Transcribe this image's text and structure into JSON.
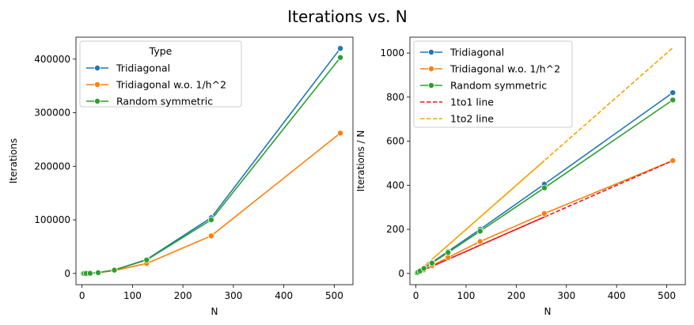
{
  "figure": {
    "suptitle": "Iterations vs. N"
  },
  "chart_data": [
    {
      "type": "line",
      "xlabel": "N",
      "ylabel": "Iterations",
      "xlim": [
        -12,
        537
      ],
      "ylim": [
        -21000,
        441000
      ],
      "xticks": [
        0,
        100,
        200,
        300,
        400,
        500
      ],
      "yticks": [
        0,
        100000,
        200000,
        300000,
        400000
      ],
      "legend": {
        "title": "Type",
        "placement": "upper-left"
      },
      "series": [
        {
          "name": "Tridiagonal",
          "color": "#1f77b4",
          "dashed": false,
          "markers": true,
          "x": [
            2,
            4,
            8,
            16,
            32,
            64,
            128,
            256,
            512
          ],
          "y": [
            6,
            24,
            80,
            330,
            1500,
            6400,
            26000,
            104000,
            420000
          ]
        },
        {
          "name": "Tridiagonal w.o. 1/h^2",
          "color": "#ff7f0e",
          "dashed": false,
          "markers": true,
          "x": [
            2,
            4,
            8,
            16,
            32,
            64,
            128,
            256,
            512
          ],
          "y": [
            3,
            10,
            40,
            250,
            1200,
            5200,
            18500,
            70000,
            262000
          ]
        },
        {
          "name": "Random symmetric",
          "color": "#2ca02c",
          "dashed": false,
          "markers": true,
          "x": [
            2,
            4,
            8,
            16,
            32,
            64,
            128,
            256,
            512
          ],
          "y": [
            5,
            22,
            75,
            320,
            1450,
            6200,
            25000,
            100000,
            403000
          ]
        }
      ]
    },
    {
      "type": "line",
      "xlabel": "N",
      "ylabel": "Iterations / N",
      "xlim": [
        -12,
        537
      ],
      "ylim": [
        -51,
        1072
      ],
      "xticks": [
        0,
        100,
        200,
        300,
        400,
        500
      ],
      "yticks": [
        0,
        200,
        400,
        600,
        800,
        1000
      ],
      "legend": {
        "title": "",
        "placement": "upper-left"
      },
      "series": [
        {
          "name": "Tridiagonal",
          "color": "#1f77b4",
          "dashed": false,
          "markers": true,
          "x": [
            2,
            4,
            8,
            16,
            32,
            64,
            128,
            256,
            512
          ],
          "y": [
            3,
            6,
            12,
            24,
            50,
            100,
            200,
            405,
            820
          ]
        },
        {
          "name": "Tridiagonal w.o. 1/h^2",
          "color": "#ff7f0e",
          "dashed": false,
          "markers": true,
          "x": [
            2,
            4,
            8,
            16,
            32,
            64,
            128,
            256,
            512
          ],
          "y": [
            2,
            4,
            8,
            16,
            36,
            72,
            145,
            272,
            512
          ]
        },
        {
          "name": "Random symmetric",
          "color": "#2ca02c",
          "dashed": false,
          "markers": true,
          "x": [
            2,
            4,
            8,
            16,
            32,
            64,
            128,
            256,
            512
          ],
          "y": [
            2.5,
            5.5,
            11,
            23,
            47,
            95,
            192,
            388,
            787
          ]
        },
        {
          "name": "1to1 line",
          "color": "#e31a1c",
          "dashed": true,
          "markers": false,
          "x": [
            2,
            512
          ],
          "y": [
            2,
            512
          ]
        },
        {
          "name": "1to2 line",
          "color": "#f5a500",
          "dashed": true,
          "markers": false,
          "x": [
            2,
            512
          ],
          "y": [
            4,
            1024
          ]
        }
      ],
      "solid_overlays": [
        {
          "color": "#f5a500",
          "x": [
            2,
            256
          ],
          "y": [
            4,
            512
          ]
        },
        {
          "color": "#e31a1c",
          "x": [
            2,
            256
          ],
          "y": [
            2,
            256
          ]
        }
      ]
    }
  ]
}
